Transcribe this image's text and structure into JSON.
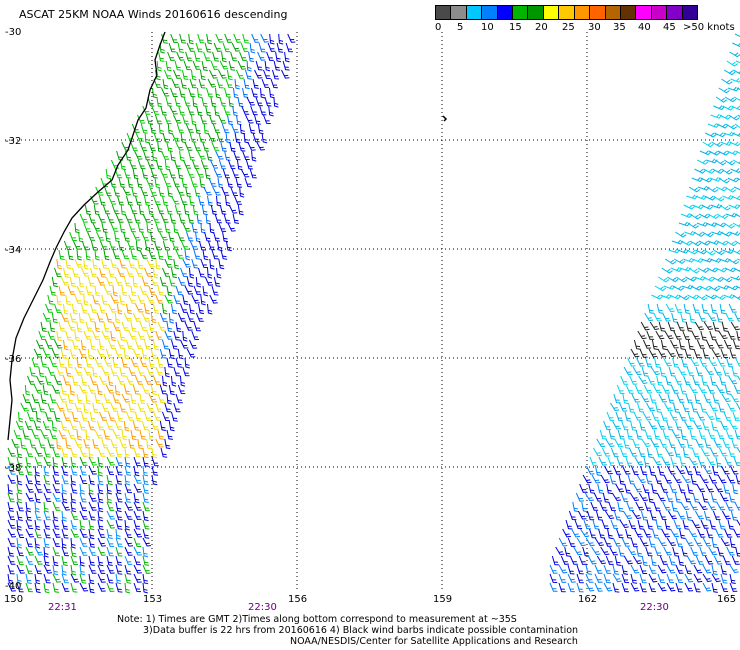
{
  "title": "ASCAT 25KM NOAA Winds 20160616 descending",
  "scale": {
    "colors": [
      "#4a4a4a",
      "#8c8c8c",
      "#00c8ff",
      "#0080ff",
      "#0000ff",
      "#00b400",
      "#009600",
      "#ffff00",
      "#ffc800",
      "#ff9600",
      "#ff6400",
      "#b46400",
      "#643200",
      "#ff00ff",
      "#c800c8",
      "#8200c8",
      "#320096"
    ],
    "labels": [
      "0",
      "5",
      "10",
      "15",
      "20",
      "25",
      "30",
      "35",
      "40",
      "45",
      ">50 knots"
    ]
  },
  "map": {
    "lat_labels": [
      "-30",
      "-32",
      "-34",
      "-36",
      "-38",
      "-40"
    ],
    "lon_labels": [
      "150",
      "153",
      "156",
      "159",
      "162",
      "165"
    ],
    "time_labels": [
      "22:31",
      "22:30",
      "22:30"
    ]
  },
  "notes": {
    "line1": "Note: 1) Times are GMT 2)Times along bottom correspond to measurement at ~35S",
    "line2": "3)Data buffer is 22 hrs from 20160616 4) Black wind barbs indicate possible contamination",
    "line3": "NOAA/NESDIS/Center for Satellite Applications and Research"
  }
}
